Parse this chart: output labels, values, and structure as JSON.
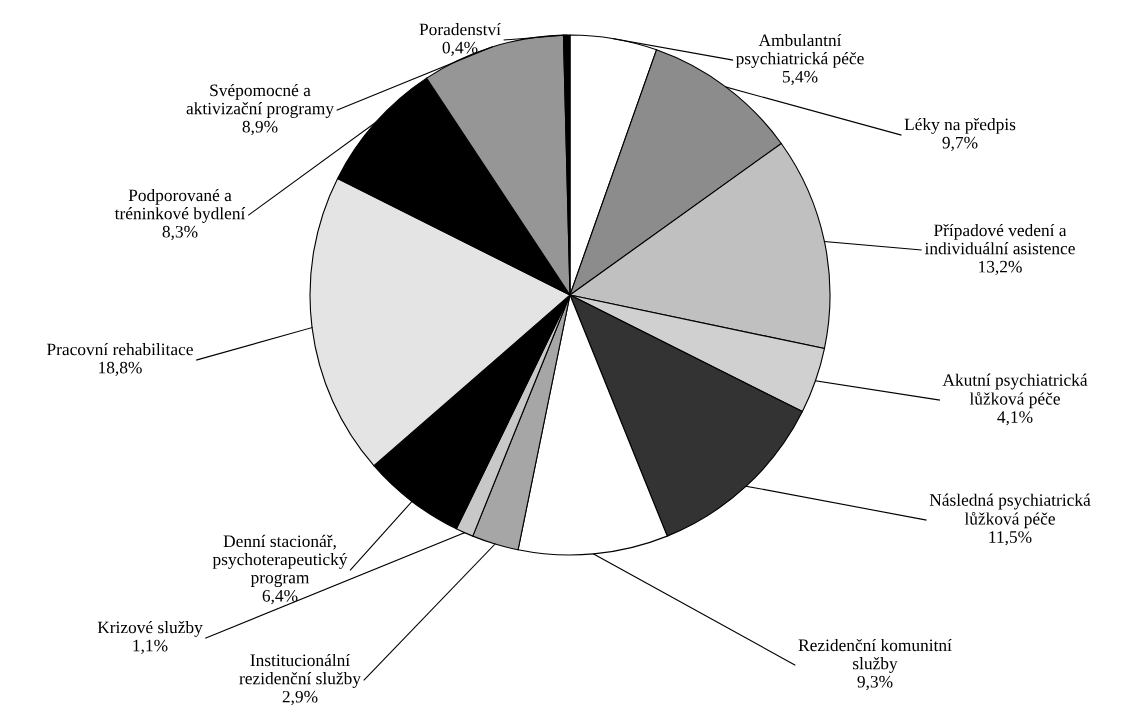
{
  "chart_data": {
    "type": "pie",
    "categories": [
      "Ambulantní\npsychiatrická péče",
      "Léky na předpis",
      "Případové vedení a\nindividuální asistence",
      "Akutní psychiatrická\nlůžková péče",
      "Následná psychiatrická\nlůžková péče",
      "Rezidenční komunitní\nslužby",
      "Institucionální\nrezidenční služby",
      "Krizové služby",
      "Denní stacionář,\npsychoterapeutický\nprogram",
      "Pracovní rehabilitace",
      "Podporované a\ntréninkové bydlení",
      "Svépomocné a\naktivizační programy",
      "Poradenství"
    ],
    "values": [
      5.4,
      9.7,
      13.2,
      4.1,
      11.5,
      9.3,
      2.9,
      1.1,
      6.4,
      18.8,
      8.3,
      8.9,
      0.4
    ],
    "value_labels": [
      "5,4%",
      "9,7%",
      "13,2%",
      "4,1%",
      "11,5%",
      "9,3%",
      "2,9%",
      "1,1%",
      "6,4%",
      "18,8%",
      "8,3%",
      "8,9%",
      "0,4%"
    ],
    "colors": [
      "#ffffff",
      "#8c8c8c",
      "#c0c0c0",
      "#d0d0d0",
      "#333333",
      "#ffffff",
      "#a6a6a6",
      "#c8c8c8",
      "#000000",
      "#e4e4e4",
      "#000000",
      "#969696",
      "#000000"
    ]
  }
}
